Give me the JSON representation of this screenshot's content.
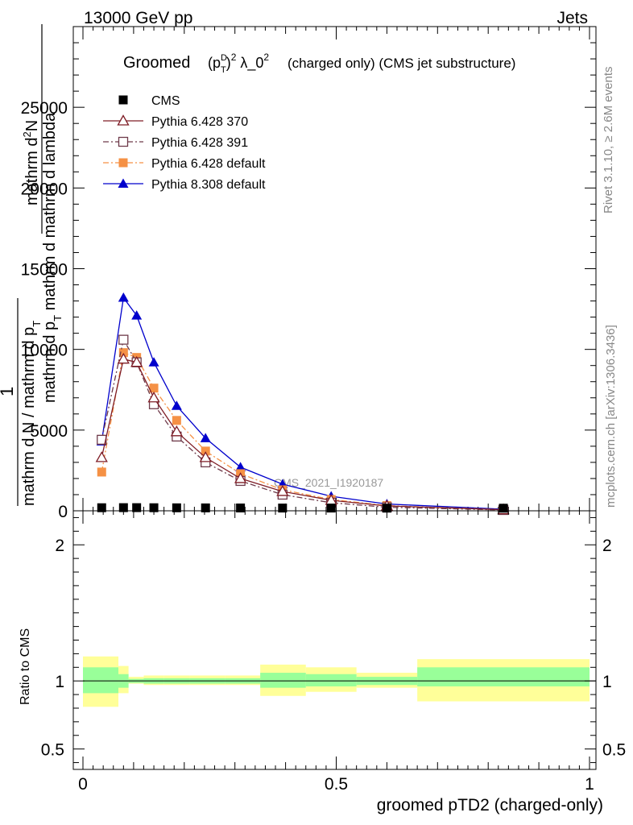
{
  "header": {
    "energy_label": "13000 GeV pp",
    "category_label": "Jets"
  },
  "side_labels": {
    "rivet": "Rivet 3.1.10, ≥ 2.6M events",
    "mcplots": "mcplots.cern.ch [arXiv:1306.3436]"
  },
  "chart_data": {
    "type": "line",
    "title_prefix": "Groomed",
    "title_rest": "(charged only) (CMS jet substructure)",
    "analysis_label": "CMS_2021_I1920187",
    "ylabel_main": {
      "line1": "mathrm d",
      "line1_sup": "2",
      "line1_after": "N",
      "line2": "mathrm d p",
      "line2_sub": "T",
      "line2_after": " mathrm d mathrm d lambda",
      "numerator_1": "1",
      "denominator": "mathrm d N / mathrm d p",
      "denominator_sub": "T"
    },
    "xlabel": "groomed pTD2 (charged-only)",
    "ylabel_ratio": "Ratio to CMS",
    "xlim": [
      0,
      1
    ],
    "ylim": [
      0,
      30000
    ],
    "ratio_ylim": [
      0.35,
      2.25
    ],
    "x_ticks": [
      0,
      0.5,
      1
    ],
    "x_tick_labels": [
      "0",
      "0.5",
      "1"
    ],
    "y_ticks": [
      0,
      5000,
      10000,
      15000,
      20000,
      25000
    ],
    "y_tick_labels": [
      "0",
      "5000",
      "10000",
      "15000",
      "20000",
      "25000"
    ],
    "ratio_ticks": [
      0.5,
      1,
      2
    ],
    "ratio_tick_labels": [
      "0.5",
      "1",
      "2"
    ],
    "bin_edges": [
      0,
      0.07,
      0.09,
      0.12,
      0.16,
      0.21,
      0.28,
      0.35,
      0.44,
      0.54,
      0.66,
      1.0
    ],
    "x": [
      0.037,
      0.08,
      0.106,
      0.14,
      0.185,
      0.242,
      0.311,
      0.394,
      0.49,
      0.6,
      0.83
    ],
    "series": [
      {
        "name": "CMS",
        "style": "data",
        "color": "#000000",
        "marker": "square",
        "values": [
          40,
          45,
          45,
          40,
          35,
          30,
          25,
          20,
          20,
          15,
          10
        ]
      },
      {
        "name": "Pythia 6.428 370",
        "style": "solid",
        "color": "#7f1d26",
        "marker": "triangle-open",
        "values": [
          3300,
          9400,
          9200,
          7000,
          4900,
          3300,
          2000,
          1200,
          650,
          300,
          70
        ]
      },
      {
        "name": "Pythia 6.428 391",
        "style": "dashdot",
        "color": "#6e3a4a",
        "marker": "square-open",
        "values": [
          4400,
          10600,
          9200,
          6600,
          4600,
          3000,
          1850,
          1000,
          500,
          220,
          50
        ]
      },
      {
        "name": "Pythia 6.428 default",
        "style": "dashdot",
        "color": "#f59145",
        "marker": "square",
        "values": [
          2400,
          9800,
          9500,
          7600,
          5600,
          3700,
          2300,
          1300,
          700,
          320,
          70
        ]
      },
      {
        "name": "Pythia 8.308 default",
        "style": "solid",
        "color": "#0000cc",
        "marker": "triangle",
        "values": [
          4300,
          13200,
          12100,
          9200,
          6500,
          4500,
          2700,
          1650,
          900,
          420,
          100
        ]
      }
    ],
    "ratio_bands": {
      "inner_color": "#99ff99",
      "outer_color": "#ffff99",
      "inner": [
        [
          0.91,
          1.1
        ],
        [
          0.95,
          1.05
        ],
        [
          0.985,
          1.015
        ],
        [
          0.98,
          1.02
        ],
        [
          0.98,
          1.02
        ],
        [
          0.98,
          1.02
        ],
        [
          0.98,
          1.02
        ],
        [
          0.95,
          1.06
        ],
        [
          0.96,
          1.05
        ],
        [
          0.97,
          1.03
        ],
        [
          0.96,
          1.1
        ]
      ],
      "outer": [
        [
          0.81,
          1.18
        ],
        [
          0.91,
          1.11
        ],
        [
          0.98,
          1.03
        ],
        [
          0.97,
          1.04
        ],
        [
          0.97,
          1.04
        ],
        [
          0.97,
          1.04
        ],
        [
          0.97,
          1.04
        ],
        [
          0.89,
          1.12
        ],
        [
          0.92,
          1.1
        ],
        [
          0.95,
          1.06
        ],
        [
          0.85,
          1.16
        ]
      ]
    }
  }
}
